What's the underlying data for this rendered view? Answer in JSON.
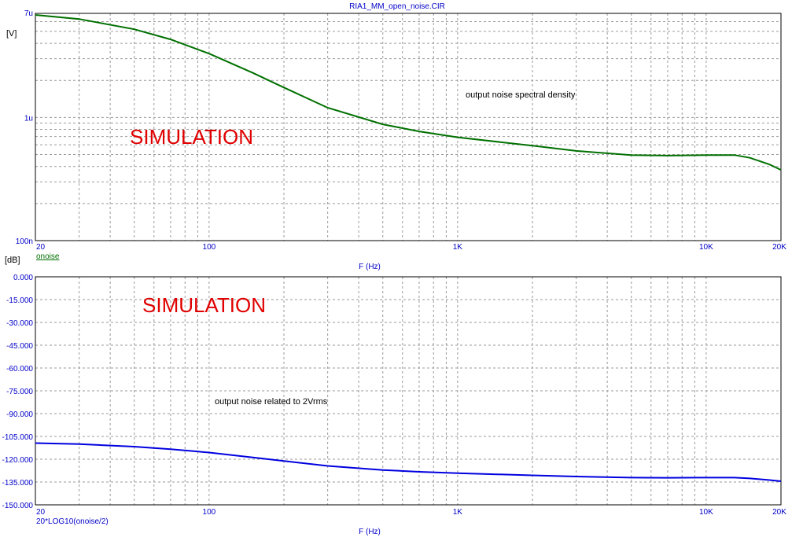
{
  "title": "RIA1_MM_open_noise.CIR",
  "chart_data": [
    {
      "type": "line",
      "x_scale": "log",
      "y_scale": "log",
      "xlim": [
        20,
        20000
      ],
      "ylim_volts": [
        1e-07,
        7e-06
      ],
      "ylabel": "[V]",
      "xlabel": "F (Hz)",
      "x_tick_labels": [
        {
          "value": 20,
          "label": "20"
        },
        {
          "value": 100,
          "label": "100"
        },
        {
          "value": 1000,
          "label": "1K"
        },
        {
          "value": 10000,
          "label": "10K"
        },
        {
          "value": 20000,
          "label": "20K"
        }
      ],
      "y_tick_labels": [
        {
          "value": 7e-06,
          "label": "7u"
        },
        {
          "value": 1e-06,
          "label": "1u"
        },
        {
          "value": 1e-07,
          "label": "100n"
        }
      ],
      "annotation": "output noise spectral density",
      "watermark": "SIMULATION",
      "grid": true,
      "series": [
        {
          "name": "onoise",
          "color": "#007000",
          "x": [
            20,
            30,
            50,
            70,
            100,
            150,
            200,
            300,
            500,
            700,
            1000,
            2000,
            3000,
            5000,
            7000,
            10000,
            13000,
            15000,
            18000,
            20000
          ],
          "y": [
            6.8e-06,
            6.3e-06,
            5.2e-06,
            4.3e-06,
            3.3e-06,
            2.3e-06,
            1.75e-06,
            1.2e-06,
            8.8e-07,
            7.7e-07,
            6.9e-07,
            5.9e-07,
            5.35e-07,
            4.95e-07,
            4.9e-07,
            4.95e-07,
            4.95e-07,
            4.7e-07,
            4.15e-07,
            3.75e-07
          ]
        }
      ]
    },
    {
      "type": "line",
      "x_scale": "log",
      "y_scale": "linear",
      "xlim": [
        20,
        20000
      ],
      "ylim": [
        -150,
        0
      ],
      "ylabel": "[dB]",
      "xlabel": "F (Hz)",
      "x_tick_labels": [
        {
          "value": 20,
          "label": "20"
        },
        {
          "value": 100,
          "label": "100"
        },
        {
          "value": 1000,
          "label": "1K"
        },
        {
          "value": 10000,
          "label": "10K"
        },
        {
          "value": 20000,
          "label": "20K"
        }
      ],
      "y_tick_labels": [
        {
          "value": 0,
          "label": "0.000"
        },
        {
          "value": -15,
          "label": "-15.000"
        },
        {
          "value": -30,
          "label": "-30.000"
        },
        {
          "value": -45,
          "label": "-45.000"
        },
        {
          "value": -60,
          "label": "-60.000"
        },
        {
          "value": -75,
          "label": "-75.000"
        },
        {
          "value": -90,
          "label": "-90.000"
        },
        {
          "value": -105,
          "label": "-105.000"
        },
        {
          "value": -120,
          "label": "-120.000"
        },
        {
          "value": -135,
          "label": "-135.000"
        },
        {
          "value": -150,
          "label": "-150.000"
        }
      ],
      "annotation": "output noise related to 2Vrms",
      "watermark": "SIMULATION",
      "grid": true,
      "series": [
        {
          "name": "20*LOG10(onoise/2)",
          "color": "#0000e0",
          "x": [
            20,
            30,
            50,
            70,
            100,
            150,
            200,
            300,
            500,
            700,
            1000,
            2000,
            3000,
            5000,
            7000,
            10000,
            13000,
            15000,
            18000,
            20000
          ],
          "y": [
            -109.4,
            -110.0,
            -111.7,
            -113.4,
            -115.6,
            -118.8,
            -121.2,
            -124.4,
            -127.1,
            -128.3,
            -129.2,
            -130.6,
            -131.4,
            -132.1,
            -132.2,
            -132.1,
            -132.1,
            -132.6,
            -133.7,
            -134.5
          ]
        }
      ]
    }
  ]
}
